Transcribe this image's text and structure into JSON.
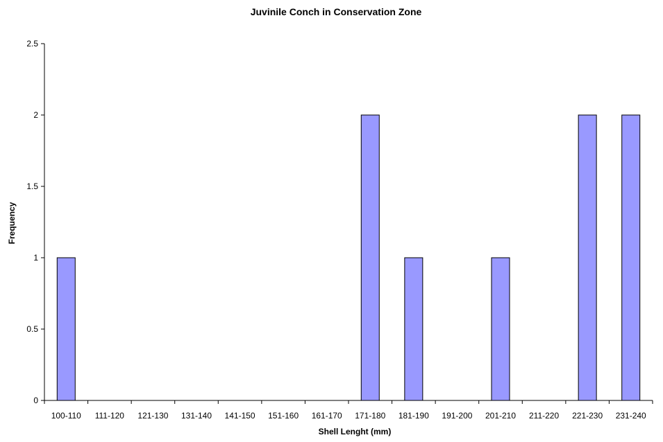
{
  "chart_data": {
    "type": "bar",
    "title": "Juvinile Conch in Conservation Zone",
    "xlabel": "Shell Lenght (mm)",
    "ylabel": "Frequency",
    "categories": [
      "100-110",
      "111-120",
      "121-130",
      "131-140",
      "141-150",
      "151-160",
      "161-170",
      "171-180",
      "181-190",
      "191-200",
      "201-210",
      "211-220",
      "221-230",
      "231-240"
    ],
    "values": [
      1,
      0,
      0,
      0,
      0,
      0,
      0,
      2,
      1,
      0,
      1,
      0,
      2,
      2
    ],
    "ylim": [
      0,
      2.5
    ],
    "yticks": [
      "0",
      "0.5",
      "1",
      "1.5",
      "2",
      "2.5"
    ],
    "grid": false,
    "legend": "none",
    "colors": {
      "bar_fill": "#9999ff",
      "bar_stroke": "#000000",
      "axis": "#000000"
    }
  }
}
